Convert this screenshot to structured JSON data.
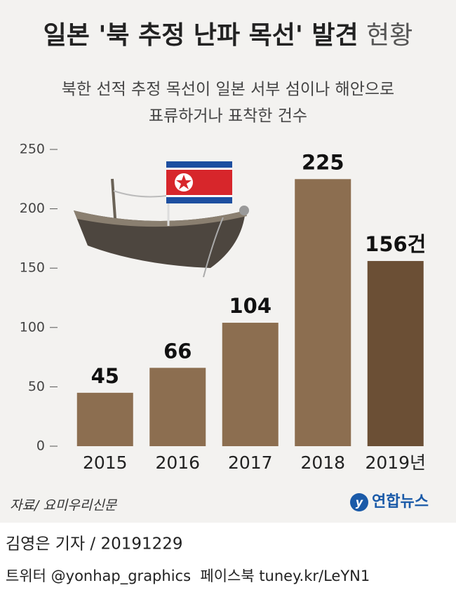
{
  "chart_data": {
    "type": "bar",
    "title": [
      "일본 '북 추정 난파 목선' 발견",
      "현황"
    ],
    "subtitle": [
      "북한 선적 추정 목선이 일본 서부 섬이나 해안으로",
      "표류하거나 표착한 건수"
    ],
    "categories": [
      "2015",
      "2016",
      "2017",
      "2018",
      "2019년"
    ],
    "values": [
      45,
      66,
      104,
      225,
      156
    ],
    "value_labels": [
      "45",
      "66",
      "104",
      "225",
      "156건"
    ],
    "colors": [
      "#8c6e50",
      "#8c6e50",
      "#8c6e50",
      "#8c6e50",
      "#6b4f35"
    ],
    "ylim": [
      0,
      250
    ],
    "yticks": [
      0,
      50,
      100,
      150,
      200,
      250
    ],
    "source": "자료/ 요미우리신문"
  },
  "logo": "연합뉴스",
  "footer": {
    "byline": "김영은 기자 / 20191229",
    "social": "트위터 @yonhap_graphics  페이스북 tuney.kr/LeYN1"
  }
}
